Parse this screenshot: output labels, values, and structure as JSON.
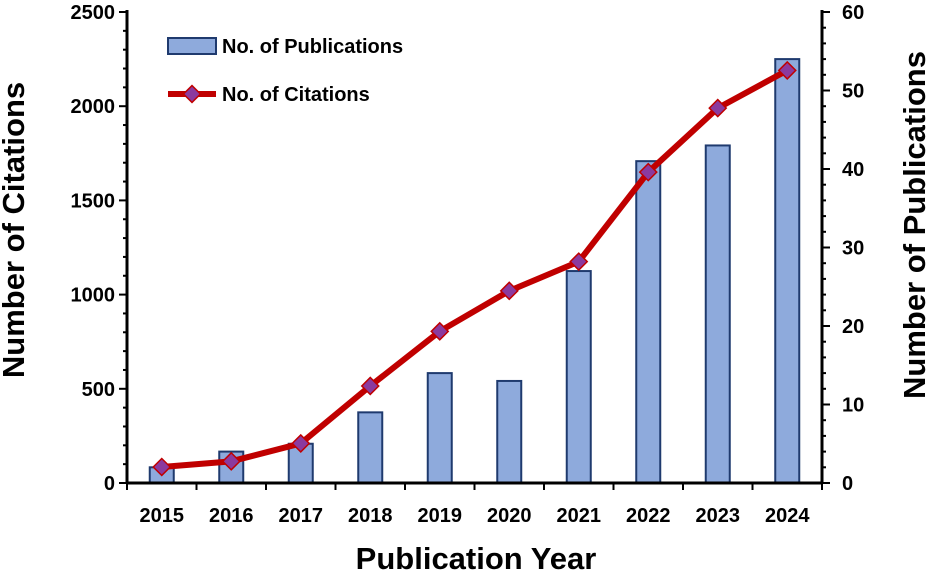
{
  "chart_data": {
    "type": "bar+line",
    "categories": [
      "2015",
      "2016",
      "2017",
      "2018",
      "2019",
      "2020",
      "2021",
      "2022",
      "2023",
      "2024"
    ],
    "series": [
      {
        "name": "No. of Publications",
        "type": "bar",
        "axis": "right",
        "values": [
          2,
          4,
          5,
          9,
          14,
          13,
          27,
          41,
          43,
          54
        ],
        "color": "#8eaadc",
        "edge_color": "#1f3a6e"
      },
      {
        "name": "No. of Citations",
        "type": "line",
        "axis": "left",
        "values": [
          85,
          115,
          210,
          515,
          805,
          1020,
          1175,
          1650,
          1990,
          2190
        ],
        "color": "#c00000",
        "marker_color": "#8b3a9e"
      }
    ],
    "xlabel": "Publication Year",
    "ylabel_left": "Number of Citations",
    "ylabel_right": "Number of Publications",
    "ylim_left": [
      0,
      2500
    ],
    "ylim_right": [
      0,
      60
    ],
    "yticks_left": [
      "0",
      "500",
      "1000",
      "1500",
      "2000",
      "2500"
    ],
    "yticks_right": [
      "0",
      "10",
      "20",
      "30",
      "40",
      "50",
      "60"
    ],
    "grid": false,
    "legend_position": "top-left"
  }
}
